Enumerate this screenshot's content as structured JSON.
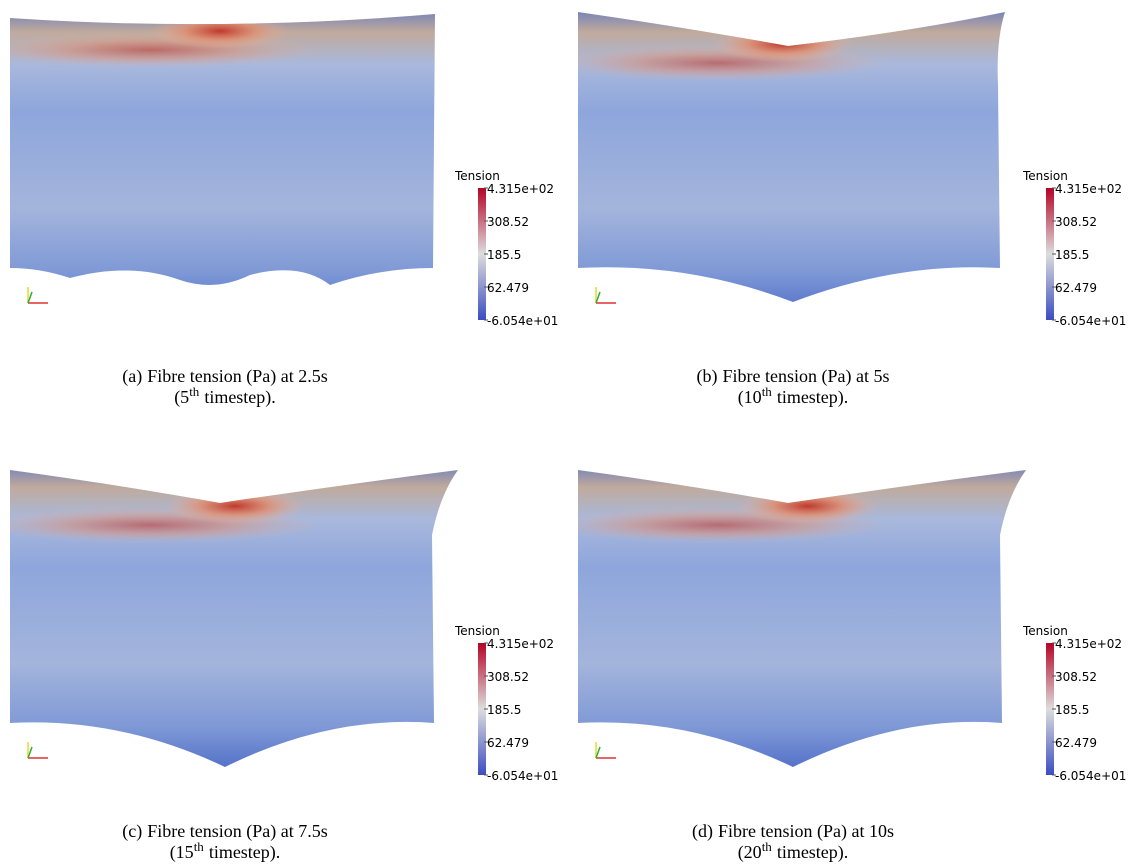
{
  "figure": {
    "panels": [
      {
        "label": "(a)",
        "caption": "Fibre tension (Pa) at 2.5s",
        "step": "(5",
        "step_sup": "th",
        "step_rest": "timestep).",
        "colorbar": {
          "title": "Tension",
          "ticks": [
            "4.315e+02",
            "308.52",
            "185.5",
            "62.479",
            "-6.054e+01"
          ]
        }
      },
      {
        "label": "(b)",
        "caption": "Fibre tension (Pa) at 5s",
        "step": "(10",
        "step_sup": "th",
        "step_rest": "timestep).",
        "colorbar": {
          "title": "Tension",
          "ticks": [
            "4.315e+02",
            "308.52",
            "185.5",
            "62.479",
            "-6.054e+01"
          ]
        }
      },
      {
        "label": "(c)",
        "caption": "Fibre tension (Pa) at 7.5s",
        "step": "(15",
        "step_sup": "th",
        "step_rest": "timestep).",
        "colorbar": {
          "title": "Tension",
          "ticks": [
            "4.315e+02",
            "308.52",
            "185.5",
            "62.479",
            "-6.054e+01"
          ]
        }
      },
      {
        "label": "(d)",
        "caption": "Fibre tension (Pa) at 10s",
        "step": "(20",
        "step_sup": "th",
        "step_rest": "timestep).",
        "colorbar": {
          "title": "Tension",
          "ticks": [
            "4.315e+02",
            "308.52",
            "185.5",
            "62.479",
            "-6.054e+01"
          ]
        }
      }
    ]
  }
}
